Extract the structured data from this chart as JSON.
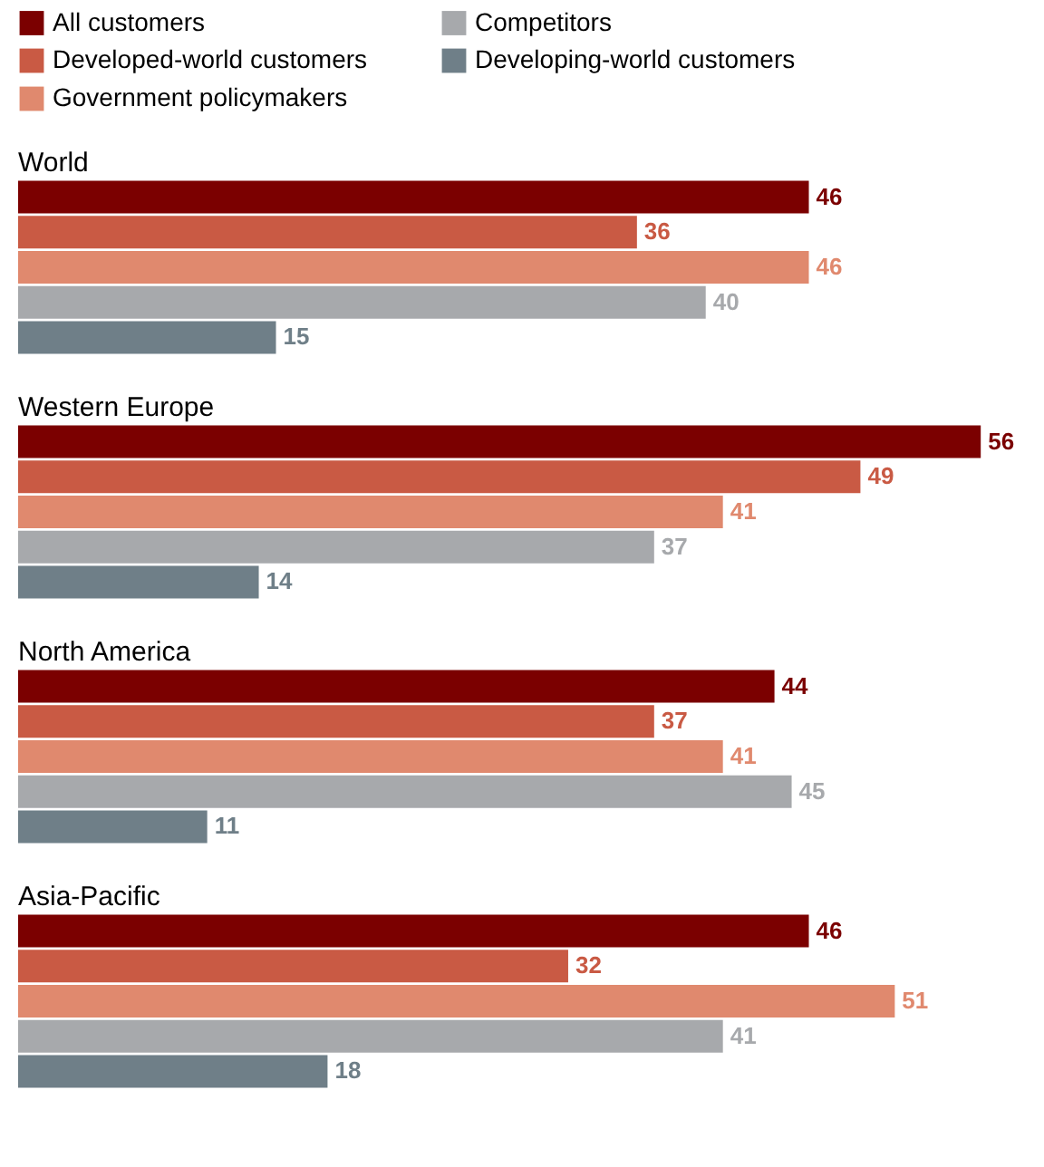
{
  "chart_data": {
    "type": "bar",
    "orientation": "horizontal",
    "data_labels": true,
    "legend": "top",
    "categories": [
      "World",
      "Western Europe",
      "North America",
      "Asia-Pacific"
    ],
    "series": [
      {
        "name": "All customers",
        "color": "#7b0000",
        "values": [
          46,
          56,
          44,
          46
        ]
      },
      {
        "name": "Developed-world customers",
        "color": "#c95a44",
        "values": [
          36,
          49,
          37,
          32
        ]
      },
      {
        "name": "Government policymakers",
        "color": "#e0896e",
        "values": [
          46,
          41,
          41,
          51
        ]
      },
      {
        "name": "Competitors",
        "color": "#a7a9ac",
        "values": [
          40,
          37,
          45,
          41
        ]
      },
      {
        "name": "Developing-world customers",
        "color": "#6f7f88",
        "values": [
          15,
          14,
          11,
          18
        ]
      }
    ]
  }
}
